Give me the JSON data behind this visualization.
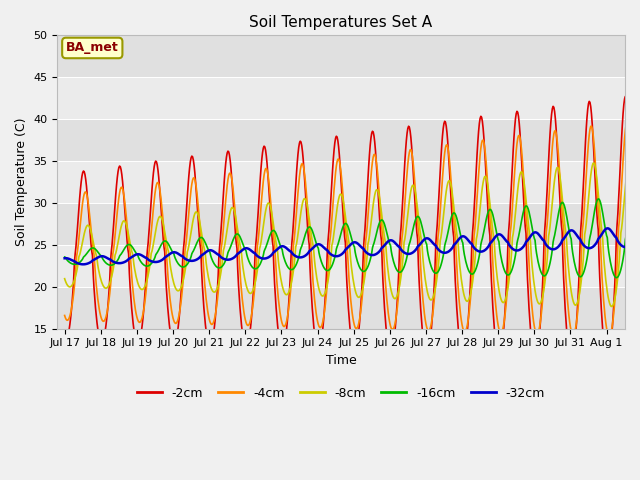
{
  "title": "Soil Temperatures Set A",
  "xlabel": "Time",
  "ylabel": "Soil Temperature (C)",
  "ylim": [
    15,
    50
  ],
  "n_days": 16,
  "xtick_labels": [
    "Jul 17",
    "Jul 18",
    "Jul 19",
    "Jul 20",
    "Jul 21",
    "Jul 22",
    "Jul 23",
    "Jul 24",
    "Jul 25",
    "Jul 26",
    "Jul 27",
    "Jul 28",
    "Jul 29",
    "Jul 30",
    "Jul 31",
    "Aug 1"
  ],
  "xtick_positions": [
    0,
    1,
    2,
    3,
    4,
    5,
    6,
    7,
    8,
    9,
    10,
    11,
    12,
    13,
    14,
    15
  ],
  "legend_labels": [
    "-2cm",
    "-4cm",
    "-8cm",
    "-16cm",
    "-32cm"
  ],
  "line_colors": [
    "#dd0000",
    "#ff8800",
    "#cccc00",
    "#00bb00",
    "#0000cc"
  ],
  "line_widths": [
    1.2,
    1.2,
    1.2,
    1.2,
    1.8
  ],
  "station_label": "BA_met",
  "bg_color": "#f0f0f0",
  "plot_bg_color": "#e8e8e8",
  "band_colors": [
    "#e0e0e0",
    "#ebebeb",
    "#e0e0e0",
    "#ebebeb",
    "#e0e0e0",
    "#ebebeb",
    "#e0e0e0"
  ],
  "grid_color": "#ffffff",
  "title_fontsize": 11,
  "axis_fontsize": 9,
  "tick_fontsize": 8,
  "legend_fontsize": 9
}
